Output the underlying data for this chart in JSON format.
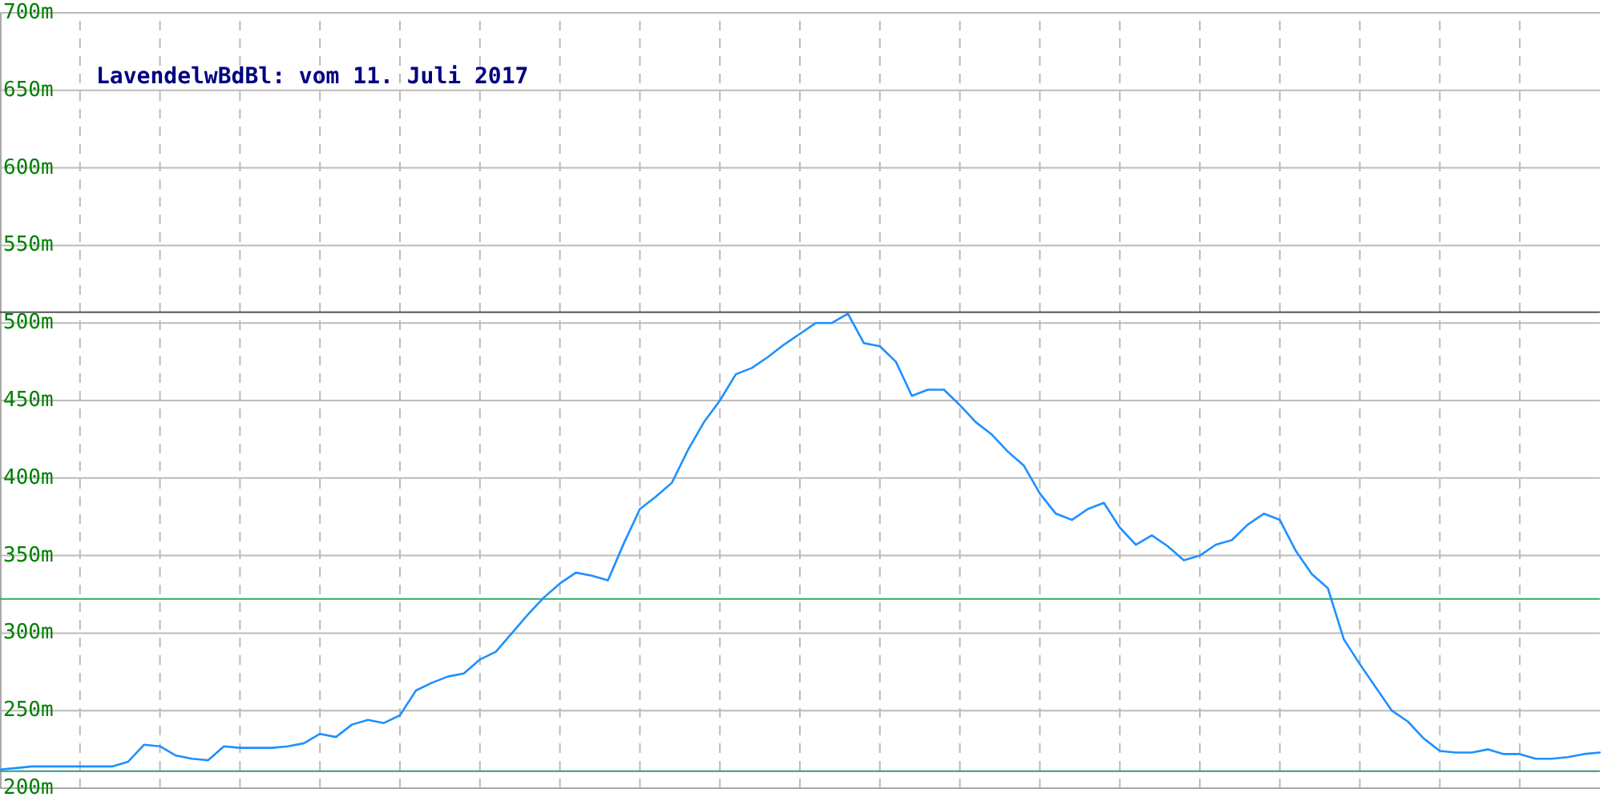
{
  "chart_data": {
    "type": "line",
    "title": "LavendelwBdBl: vom 11. Juli 2017",
    "categories": [
      null,
      null,
      null,
      null,
      null,
      null,
      null,
      null,
      null,
      null,
      null,
      null,
      null,
      null,
      null,
      null,
      null,
      null,
      null,
      null,
      null,
      null,
      null,
      null,
      null,
      null,
      null,
      null,
      null,
      null,
      null,
      null,
      null,
      null,
      null,
      null,
      null,
      null,
      null,
      null,
      null,
      null,
      null,
      null,
      null,
      null,
      null,
      null,
      null,
      null,
      null,
      null,
      null,
      null,
      null,
      null,
      null,
      null,
      null,
      null,
      null,
      null,
      null,
      null,
      null,
      null,
      null,
      null,
      null,
      null,
      null,
      null,
      null,
      null,
      null,
      null,
      null,
      null,
      null,
      null,
      null,
      null,
      null,
      null,
      null,
      null,
      null,
      null,
      null,
      null,
      null,
      null,
      null,
      null,
      null,
      null,
      null,
      null,
      null,
      null,
      null
    ],
    "series": [
      {
        "color": "#1e90ff",
        "values": [
          212,
          213,
          214,
          214,
          214,
          214,
          214,
          214,
          217,
          228,
          227,
          221,
          219,
          218,
          227,
          226,
          226,
          226,
          227,
          229,
          235,
          233,
          241,
          244,
          242,
          247,
          263,
          268,
          272,
          274,
          283,
          288,
          300,
          312,
          323,
          332,
          339,
          337,
          334,
          358,
          380,
          388,
          397,
          418,
          436,
          450,
          467,
          471,
          478,
          486,
          493,
          500,
          500,
          506,
          487,
          485,
          475,
          453,
          457,
          457,
          447,
          436,
          428,
          417,
          408,
          390,
          377,
          373,
          380,
          384,
          368,
          357,
          363,
          356,
          347,
          350,
          357,
          360,
          370,
          377,
          373,
          353,
          338,
          329,
          296,
          280,
          265,
          250,
          243,
          232,
          224,
          223,
          223,
          225,
          222,
          222,
          219,
          219,
          220,
          222,
          223
        ]
      }
    ],
    "ylim": [
      200,
      700
    ],
    "yticks": [
      {
        "value": 200,
        "label": "200m"
      },
      {
        "value": 250,
        "label": "250m"
      },
      {
        "value": 300,
        "label": "300m"
      },
      {
        "value": 350,
        "label": "350m"
      },
      {
        "value": 400,
        "label": "400m"
      },
      {
        "value": 450,
        "label": "450m"
      },
      {
        "value": 500,
        "label": "500m"
      },
      {
        "value": 550,
        "label": "550m"
      },
      {
        "value": 600,
        "label": "600m"
      },
      {
        "value": 650,
        "label": "650m"
      },
      {
        "value": 700,
        "label": "700m"
      }
    ],
    "ref_lines": [
      {
        "axis": "y",
        "value": 507,
        "color": "#555555"
      },
      {
        "axis": "y",
        "value": 322,
        "color": "#33aa66"
      },
      {
        "axis": "y",
        "value": 211,
        "color": "#339980"
      }
    ],
    "grid": true,
    "marker": "none",
    "line_style": "solid"
  }
}
